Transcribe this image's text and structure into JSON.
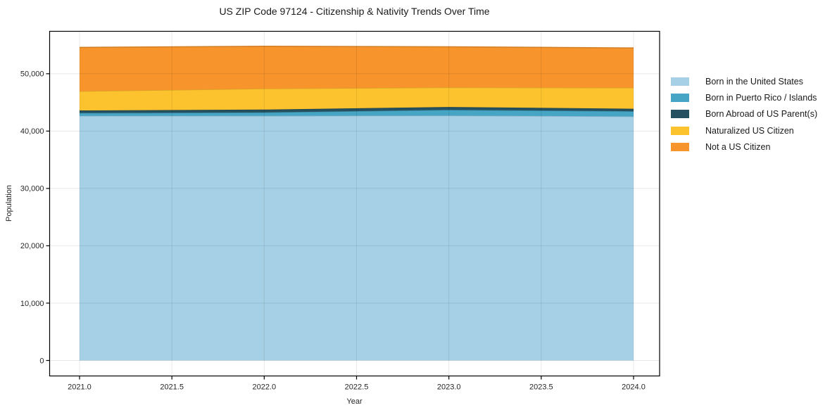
{
  "title": "US ZIP Code 97124 - Citizenship & Nativity Trends Over Time",
  "chart_data": {
    "type": "area",
    "stacked": true,
    "title": "US ZIP Code 97124 - Citizenship & Nativity Trends Over Time",
    "xlabel": "Year",
    "ylabel": "Population",
    "x": [
      2021,
      2022,
      2023,
      2024
    ],
    "series": [
      {
        "name": "Born in the United States",
        "color": "#a6d0e6",
        "values": [
          42650,
          42650,
          42700,
          42550
        ]
      },
      {
        "name": "Born in Puerto Rico / Islands",
        "color": "#46a5c5",
        "values": [
          500,
          600,
          1000,
          900
        ]
      },
      {
        "name": "Born Abroad of US Parent(s)",
        "color": "#25505f",
        "values": [
          450,
          500,
          500,
          450
        ]
      },
      {
        "name": "Naturalized US Citizen",
        "color": "#fdc32e",
        "values": [
          3350,
          3650,
          3400,
          3650
        ]
      },
      {
        "name": "Not a US Citizen",
        "color": "#f7942b",
        "values": [
          7650,
          7400,
          7100,
          6950
        ]
      }
    ],
    "stack_totals": [
      54600,
      54800,
      54700,
      54500
    ],
    "xlim": [
      2020.838,
      2024.141
    ],
    "ylim": [
      -2700,
      57400
    ],
    "xticks": {
      "values": [
        2021,
        2021.5,
        2022,
        2022.5,
        2023,
        2023.5,
        2024
      ],
      "labels": [
        "2021.0",
        "2021.5",
        "2022.0",
        "2022.5",
        "2023.0",
        "2023.5",
        "2024.0"
      ]
    },
    "yticks": {
      "values": [
        0,
        10000,
        20000,
        30000,
        40000,
        50000
      ],
      "labels": [
        "0",
        "10,000",
        "20,000",
        "30,000",
        "40,000",
        "50,000"
      ]
    },
    "grid": true,
    "legend_position": "right-outside"
  },
  "colors": {
    "grid": "rgba(0,0,0,0.09)",
    "spine": "#000000",
    "tick_text": "#262626",
    "background": "#ffffff"
  }
}
